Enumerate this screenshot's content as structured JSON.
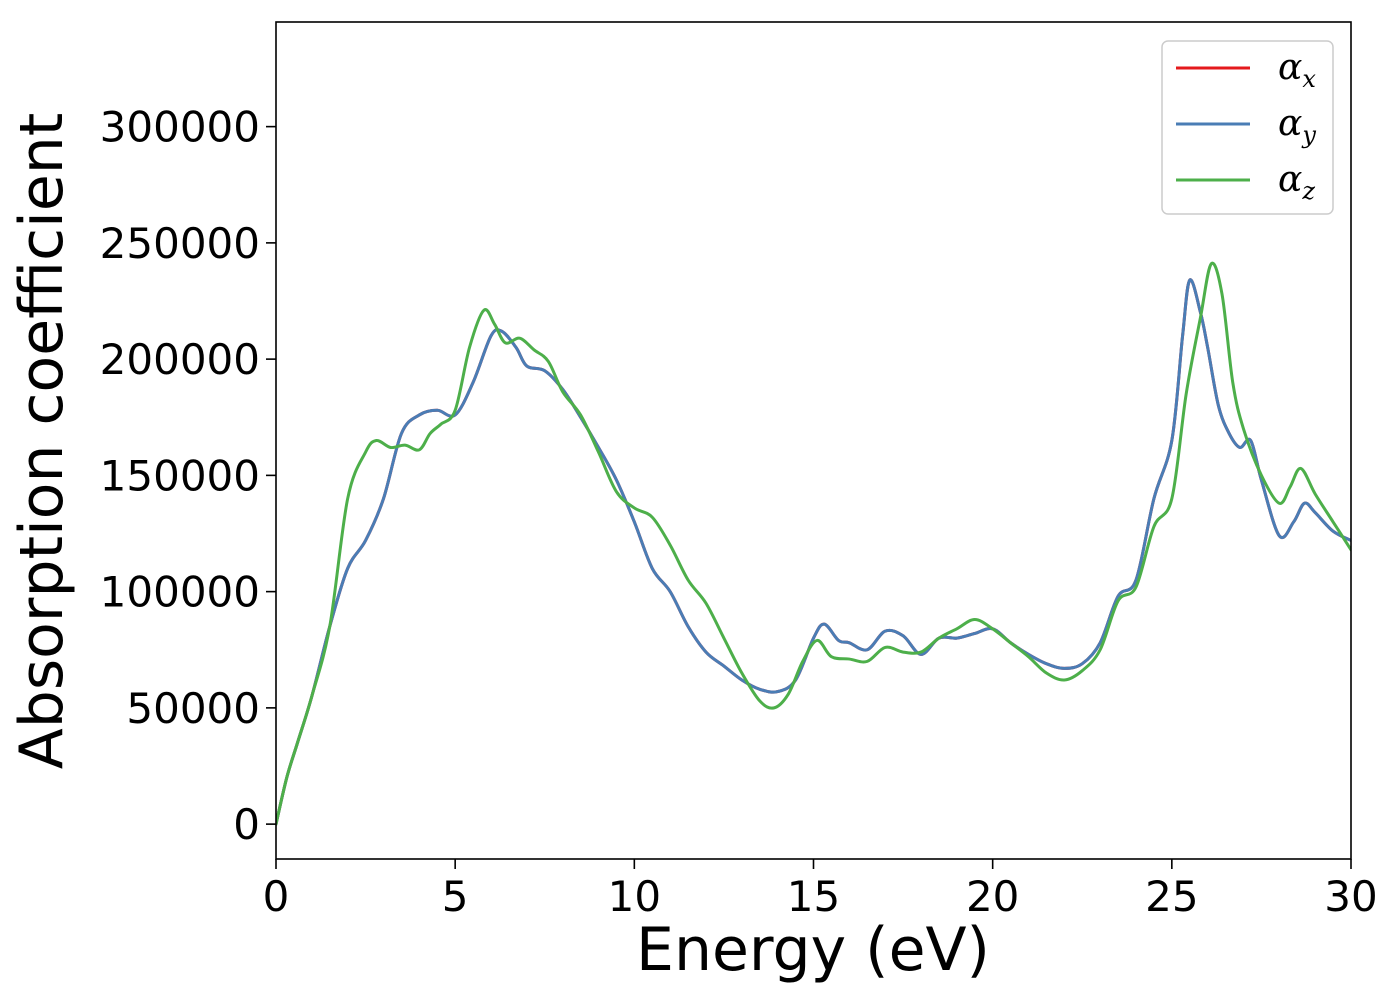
{
  "chart_data": {
    "type": "line",
    "xlabel": "Energy (eV)",
    "ylabel": "Absorption coefficient",
    "xlim": [
      0,
      30
    ],
    "ylim": [
      -15000,
      345000
    ],
    "x_ticks": [
      0,
      5,
      10,
      15,
      20,
      25,
      30
    ],
    "y_ticks": [
      0,
      50000,
      100000,
      150000,
      200000,
      250000,
      300000
    ],
    "grid": false,
    "legend_position": "top-right",
    "series": [
      {
        "name": "α",
        "subscript": "x",
        "color": "#e41a1c",
        "x": [
          0,
          0.3,
          0.6,
          1.0,
          1.5,
          2.0,
          2.5,
          3.0,
          3.5,
          4.0,
          4.5,
          5.0,
          5.5,
          6.0,
          6.3,
          6.7,
          7.0,
          7.5,
          8.0,
          8.5,
          9.0,
          9.5,
          10.0,
          10.5,
          11.0,
          11.5,
          12.0,
          12.5,
          13.0,
          13.5,
          14.0,
          14.5,
          15.0,
          15.3,
          15.7,
          16.0,
          16.5,
          17.0,
          17.5,
          18.0,
          18.5,
          19.0,
          19.5,
          20.0,
          20.5,
          21.0,
          21.5,
          22.0,
          22.5,
          23.0,
          23.5,
          24.0,
          24.5,
          25.0,
          25.3,
          25.5,
          25.8,
          26.0,
          26.3,
          26.6,
          26.9,
          27.2,
          27.5,
          28.0,
          28.4,
          28.7,
          29.0,
          29.5,
          30.0
        ],
        "y": [
          0,
          20000,
          35000,
          55000,
          85000,
          110000,
          122000,
          140000,
          168000,
          176000,
          178000,
          176000,
          190000,
          210000,
          212000,
          205000,
          197000,
          195000,
          187000,
          175000,
          162000,
          148000,
          130000,
          110000,
          100000,
          85000,
          74000,
          68000,
          62000,
          58000,
          57000,
          62000,
          80000,
          86000,
          79000,
          78000,
          75000,
          83000,
          81000,
          73000,
          80000,
          80000,
          82000,
          84000,
          78000,
          73000,
          69000,
          67000,
          69000,
          78000,
          98000,
          105000,
          140000,
          165000,
          210000,
          234000,
          220000,
          205000,
          180000,
          168000,
          162000,
          165000,
          148000,
          124000,
          130000,
          138000,
          134000,
          126000,
          122000
        ]
      },
      {
        "name": "α",
        "subscript": "y",
        "color": "#4a7db5",
        "x": [
          0,
          0.3,
          0.6,
          1.0,
          1.5,
          2.0,
          2.5,
          3.0,
          3.5,
          4.0,
          4.5,
          5.0,
          5.5,
          6.0,
          6.3,
          6.7,
          7.0,
          7.5,
          8.0,
          8.5,
          9.0,
          9.5,
          10.0,
          10.5,
          11.0,
          11.5,
          12.0,
          12.5,
          13.0,
          13.5,
          14.0,
          14.5,
          15.0,
          15.3,
          15.7,
          16.0,
          16.5,
          17.0,
          17.5,
          18.0,
          18.5,
          19.0,
          19.5,
          20.0,
          20.5,
          21.0,
          21.5,
          22.0,
          22.5,
          23.0,
          23.5,
          24.0,
          24.5,
          25.0,
          25.3,
          25.5,
          25.8,
          26.0,
          26.3,
          26.6,
          26.9,
          27.2,
          27.5,
          28.0,
          28.4,
          28.7,
          29.0,
          29.5,
          30.0
        ],
        "y": [
          0,
          20000,
          35000,
          55000,
          85000,
          110000,
          122000,
          140000,
          168000,
          176000,
          178000,
          176000,
          190000,
          210000,
          212000,
          205000,
          197000,
          195000,
          187000,
          175000,
          162000,
          148000,
          130000,
          110000,
          100000,
          85000,
          74000,
          68000,
          62000,
          58000,
          57000,
          62000,
          80000,
          86000,
          79000,
          78000,
          75000,
          83000,
          81000,
          73000,
          80000,
          80000,
          82000,
          84000,
          78000,
          73000,
          69000,
          67000,
          69000,
          78000,
          98000,
          105000,
          140000,
          165000,
          210000,
          234000,
          220000,
          205000,
          180000,
          168000,
          162000,
          165000,
          148000,
          124000,
          130000,
          138000,
          134000,
          126000,
          122000
        ]
      },
      {
        "name": "α",
        "subscript": "z",
        "color": "#4daf4a",
        "x": [
          0,
          0.3,
          0.6,
          1.0,
          1.5,
          2.0,
          2.5,
          2.8,
          3.2,
          3.6,
          4.0,
          4.3,
          4.6,
          5.0,
          5.4,
          5.8,
          6.1,
          6.4,
          6.8,
          7.2,
          7.6,
          8.0,
          8.5,
          9.0,
          9.5,
          10.0,
          10.5,
          11.0,
          11.5,
          12.0,
          12.5,
          13.0,
          13.5,
          13.9,
          14.3,
          14.7,
          15.1,
          15.5,
          16.0,
          16.5,
          17.0,
          17.5,
          18.0,
          18.5,
          19.0,
          19.5,
          20.0,
          20.5,
          21.0,
          21.5,
          22.0,
          22.5,
          23.0,
          23.5,
          24.0,
          24.5,
          25.0,
          25.4,
          25.8,
          26.1,
          26.4,
          26.7,
          27.0,
          27.5,
          28.0,
          28.3,
          28.6,
          29.0,
          29.5,
          30.0
        ],
        "y": [
          0,
          20000,
          35000,
          55000,
          85000,
          140000,
          160000,
          165000,
          162000,
          163000,
          161000,
          168000,
          172000,
          178000,
          205000,
          221000,
          215000,
          207000,
          209000,
          204000,
          199000,
          186000,
          176000,
          160000,
          143000,
          136000,
          132000,
          120000,
          105000,
          95000,
          80000,
          65000,
          53000,
          50000,
          56000,
          70000,
          79000,
          72000,
          71000,
          70000,
          76000,
          74000,
          74000,
          80000,
          84000,
          88000,
          84000,
          78000,
          72000,
          65000,
          62000,
          66000,
          75000,
          96000,
          102000,
          128000,
          140000,
          185000,
          218000,
          241000,
          228000,
          190000,
          170000,
          150000,
          138000,
          145000,
          153000,
          142000,
          130000,
          118000
        ]
      }
    ]
  }
}
